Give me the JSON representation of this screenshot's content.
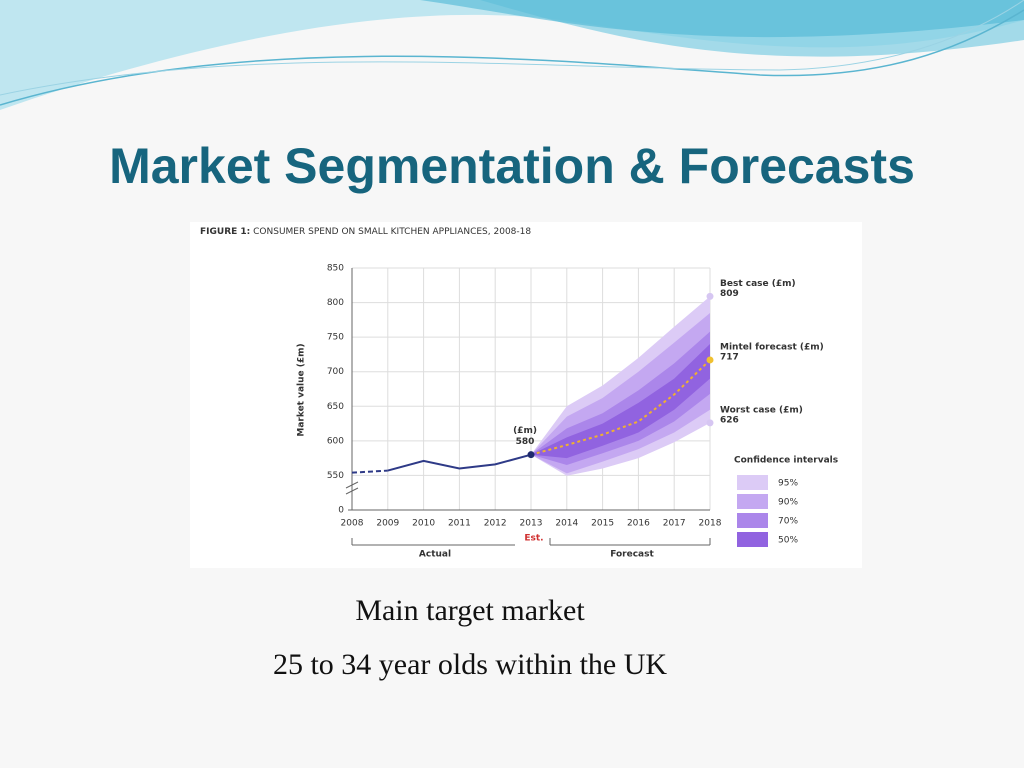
{
  "slide_title": "Market Segmentation & Forecasts",
  "body": [
    "Main target market",
    "25 to 34 year olds within the UK"
  ],
  "chart_data": {
    "type": "fan",
    "figure": "FIGURE 1:",
    "title": "CONSUMER SPEND ON SMALL KITCHEN APPLIANCES, 2008-18",
    "ylabel": "Market value (£m)",
    "x": [
      2008,
      2009,
      2010,
      2011,
      2012,
      2013,
      2014,
      2015,
      2016,
      2017,
      2018
    ],
    "xlim": [
      2008,
      2018
    ],
    "xticks": [
      2008,
      2009,
      2010,
      2011,
      2012,
      2013,
      2014,
      2015,
      2016,
      2017,
      2018
    ],
    "ylim": [
      0,
      850
    ],
    "yticks": [
      0,
      550,
      600,
      650,
      700,
      750,
      800,
      850
    ],
    "axis_break": true,
    "grid": true,
    "series": [
      {
        "color": "#2e3a87",
        "line_style": "dashed",
        "values": [
          554,
          557,
          null,
          null,
          null,
          null,
          null,
          null,
          null,
          null,
          null
        ]
      },
      {
        "color": "#2e3a87",
        "line_style": "solid",
        "values": [
          null,
          557,
          571,
          560,
          566,
          580,
          null,
          null,
          null,
          null,
          null
        ]
      },
      {
        "color": "#f0b030",
        "line_style": "dotted",
        "values": [
          null,
          null,
          null,
          null,
          null,
          580,
          594,
          609,
          628,
          667,
          717
        ]
      }
    ],
    "legend_title": "Confidence intervals",
    "bands": [
      {
        "name": "95%",
        "color": "#dccbf6",
        "low": [
          null,
          null,
          null,
          null,
          null,
          580,
          545,
          560,
          575,
          598,
          626
        ],
        "high": [
          null,
          null,
          null,
          null,
          null,
          580,
          650,
          680,
          720,
          765,
          809
        ]
      },
      {
        "name": "90%",
        "color": "#c4a8f1",
        "low": [
          null,
          null,
          null,
          null,
          null,
          580,
          553,
          570,
          588,
          612,
          645
        ],
        "high": [
          null,
          null,
          null,
          null,
          null,
          580,
          635,
          662,
          700,
          742,
          785
        ]
      },
      {
        "name": "70%",
        "color": "#ab86ea",
        "low": [
          null,
          null,
          null,
          null,
          null,
          580,
          565,
          582,
          600,
          628,
          668
        ],
        "high": [
          null,
          null,
          null,
          null,
          null,
          580,
          618,
          640,
          673,
          712,
          758
        ]
      },
      {
        "name": "50%",
        "color": "#9163e0",
        "low": [
          null,
          null,
          null,
          null,
          null,
          580,
          575,
          593,
          612,
          645,
          690
        ],
        "high": [
          null,
          null,
          null,
          null,
          null,
          580,
          605,
          625,
          655,
          690,
          740
        ]
      }
    ],
    "annotations": [
      {
        "label": "(£m)",
        "x": 2013,
        "value": 580,
        "color": "#1f2a6e"
      },
      {
        "label": "Best case (£m)",
        "x": 2018,
        "value": 809,
        "color": "#d6c6f2"
      },
      {
        "label": "Mintel forecast (£m)",
        "x": 2018,
        "value": 717,
        "color": "#f0c030"
      },
      {
        "label": "Worst case (£m)",
        "x": 2018,
        "value": 626,
        "color": "#d6c6f2"
      }
    ],
    "periods": [
      "Actual",
      "Est.",
      "Forecast"
    ]
  }
}
